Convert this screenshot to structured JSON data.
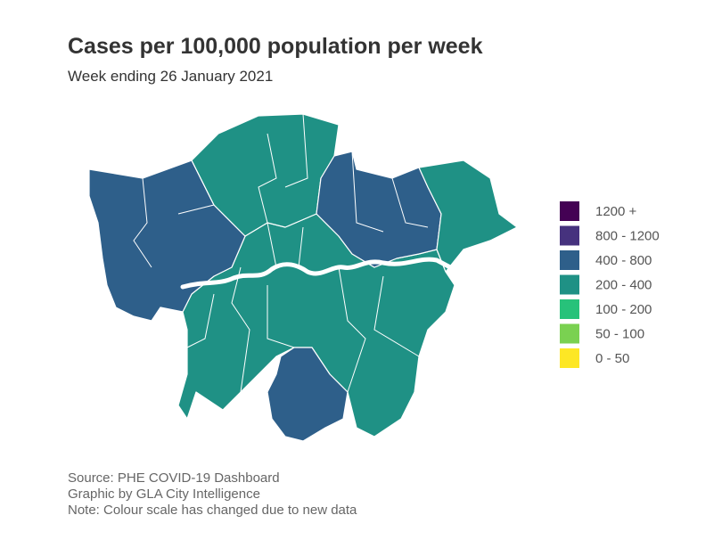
{
  "header": {
    "title": "Cases per 100,000 population per week",
    "subtitle": "Week ending 26 January 2021"
  },
  "legend": [
    {
      "label": "1200 +",
      "color": "#440154"
    },
    {
      "label": "800 - 1200",
      "color": "#46327e"
    },
    {
      "label": "400 - 800",
      "color": "#2e5f8a"
    },
    {
      "label": "200 - 400",
      "color": "#1f9185"
    },
    {
      "label": "100 - 200",
      "color": "#27c27a"
    },
    {
      "label": "50 - 100",
      "color": "#7ad151"
    },
    {
      "label": "0 - 50",
      "color": "#fde725"
    }
  ],
  "notes": [
    "Source: PHE COVID-19 Dashboard",
    "Graphic by GLA City Intelligence",
    "Note: Colour scale has changed due to new data"
  ]
}
